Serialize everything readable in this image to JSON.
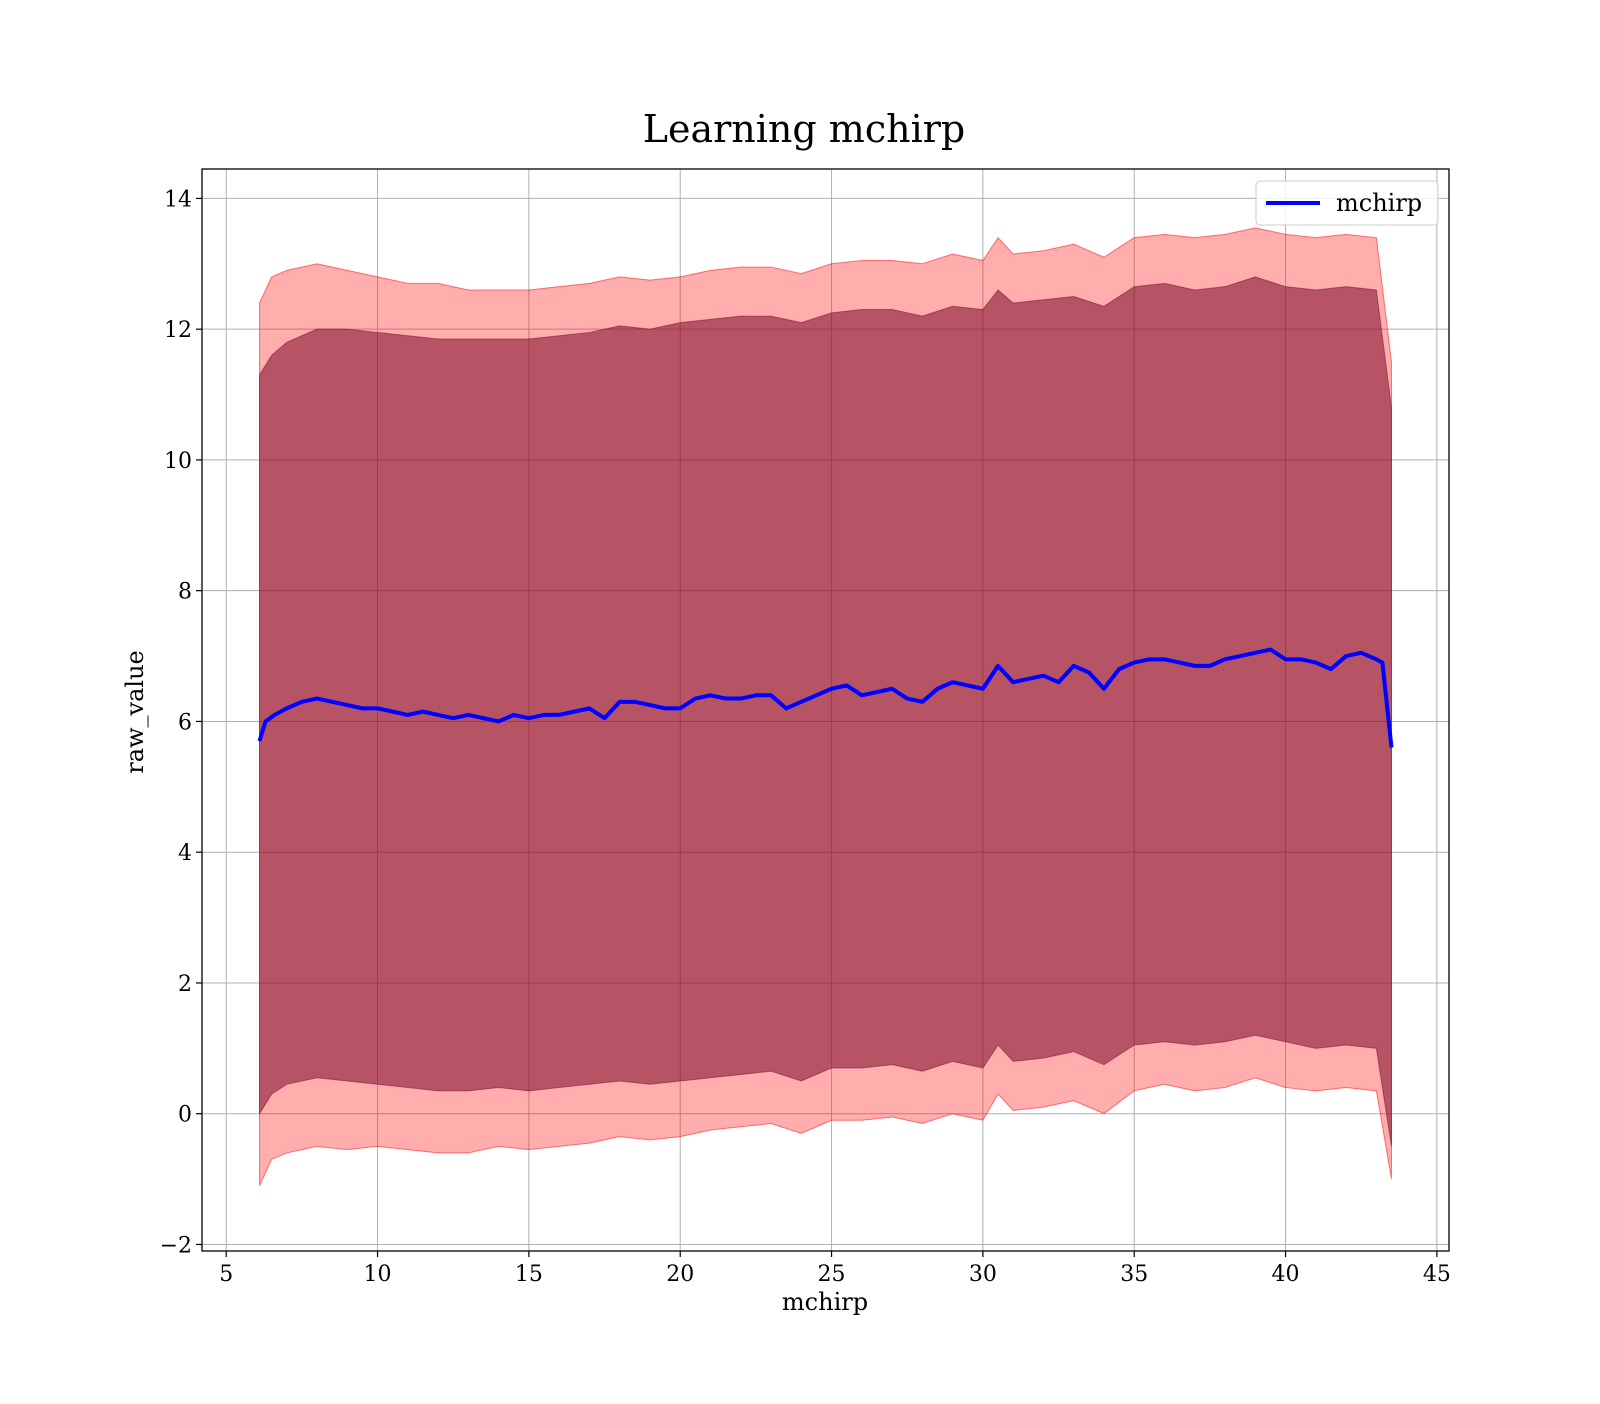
{
  "chart_data": {
    "type": "line",
    "title": "Learning mchirp",
    "xlabel": "mchirp",
    "ylabel": "raw_value",
    "xlim": [
      4.2,
      45.4
    ],
    "ylim": [
      -2.1,
      14.45
    ],
    "xticks": [
      5,
      10,
      15,
      20,
      25,
      30,
      35,
      40,
      45
    ],
    "yticks": [
      -2,
      0,
      2,
      4,
      6,
      8,
      10,
      12,
      14
    ],
    "xtick_labels": [
      "5",
      "10",
      "15",
      "20",
      "25",
      "30",
      "35",
      "40",
      "45"
    ],
    "ytick_labels": [
      "−2",
      "0",
      "2",
      "4",
      "6",
      "8",
      "10",
      "12",
      "14"
    ],
    "grid": true,
    "legend_position": "top-right",
    "legend": [
      {
        "label": "mchirp",
        "color": "#0000ff"
      }
    ],
    "series": [
      {
        "name": "mchirp",
        "color": "#0000ff",
        "x": [
          6.1,
          6.3,
          6.6,
          7,
          7.5,
          8,
          8.5,
          9,
          9.5,
          10,
          10.5,
          11,
          11.5,
          12,
          12.5,
          13,
          13.5,
          14,
          14.5,
          15,
          15.5,
          16,
          16.5,
          17,
          17.5,
          18,
          18.5,
          19,
          19.5,
          20,
          20.5,
          21,
          21.5,
          22,
          22.5,
          23,
          23.5,
          24,
          24.5,
          25,
          25.5,
          26,
          26.5,
          27,
          27.5,
          28,
          28.5,
          29,
          29.5,
          30,
          30.5,
          31,
          31.5,
          32,
          32.5,
          33,
          33.5,
          34,
          34.5,
          35,
          35.5,
          36,
          36.5,
          37,
          37.5,
          38,
          38.5,
          39,
          39.5,
          40,
          40.5,
          41,
          41.5,
          42,
          42.5,
          43,
          43.2,
          43.5
        ],
        "y": [
          5.7,
          6.0,
          6.1,
          6.2,
          6.3,
          6.35,
          6.3,
          6.25,
          6.2,
          6.2,
          6.15,
          6.1,
          6.15,
          6.1,
          6.05,
          6.1,
          6.05,
          6.0,
          6.1,
          6.05,
          6.1,
          6.1,
          6.15,
          6.2,
          6.05,
          6.3,
          6.3,
          6.25,
          6.2,
          6.2,
          6.35,
          6.4,
          6.35,
          6.35,
          6.4,
          6.4,
          6.2,
          6.3,
          6.4,
          6.5,
          6.55,
          6.4,
          6.45,
          6.5,
          6.35,
          6.3,
          6.5,
          6.6,
          6.55,
          6.5,
          6.85,
          6.6,
          6.65,
          6.7,
          6.6,
          6.85,
          6.75,
          6.5,
          6.8,
          6.9,
          6.95,
          6.95,
          6.9,
          6.85,
          6.85,
          6.95,
          7.0,
          7.05,
          7.1,
          6.95,
          6.95,
          6.9,
          6.8,
          7.0,
          7.05,
          6.95,
          6.9,
          5.6
        ]
      }
    ],
    "bands": [
      {
        "color": "#ff0000",
        "opacity": 0.32,
        "x": [
          6.1,
          6.5,
          7,
          8,
          9,
          10,
          11,
          12,
          13,
          14,
          15,
          16,
          17,
          18,
          19,
          20,
          21,
          22,
          23,
          24,
          25,
          26,
          27,
          28,
          29,
          30,
          30.5,
          31,
          32,
          33,
          34,
          35,
          36,
          37,
          38,
          39,
          40,
          41,
          42,
          43,
          43.5
        ],
        "upper": [
          12.4,
          12.8,
          12.9,
          13.0,
          12.9,
          12.8,
          12.7,
          12.7,
          12.6,
          12.6,
          12.6,
          12.65,
          12.7,
          12.8,
          12.75,
          12.8,
          12.9,
          12.95,
          12.95,
          12.85,
          13.0,
          13.05,
          13.05,
          13.0,
          13.15,
          13.05,
          13.4,
          13.15,
          13.2,
          13.3,
          13.1,
          13.4,
          13.45,
          13.4,
          13.45,
          13.55,
          13.45,
          13.4,
          13.45,
          13.4,
          11.5
        ],
        "lower": [
          -1.1,
          -0.7,
          -0.6,
          -0.5,
          -0.55,
          -0.5,
          -0.55,
          -0.6,
          -0.6,
          -0.5,
          -0.55,
          -0.5,
          -0.45,
          -0.35,
          -0.4,
          -0.35,
          -0.25,
          -0.2,
          -0.15,
          -0.3,
          -0.1,
          -0.1,
          -0.05,
          -0.15,
          0.0,
          -0.1,
          0.3,
          0.05,
          0.1,
          0.2,
          0.0,
          0.35,
          0.45,
          0.35,
          0.4,
          0.55,
          0.4,
          0.35,
          0.4,
          0.35,
          -1.0
        ]
      },
      {
        "color": "#7a0a2a",
        "opacity": 0.55,
        "x": [
          6.1,
          6.5,
          7,
          8,
          9,
          10,
          11,
          12,
          13,
          14,
          15,
          16,
          17,
          18,
          19,
          20,
          21,
          22,
          23,
          24,
          25,
          26,
          27,
          28,
          29,
          30,
          30.5,
          31,
          32,
          33,
          34,
          35,
          36,
          37,
          38,
          39,
          40,
          41,
          42,
          43,
          43.5
        ],
        "upper": [
          11.3,
          11.6,
          11.8,
          12.0,
          12.0,
          11.95,
          11.9,
          11.85,
          11.85,
          11.85,
          11.85,
          11.9,
          11.95,
          12.05,
          12.0,
          12.1,
          12.15,
          12.2,
          12.2,
          12.1,
          12.25,
          12.3,
          12.3,
          12.2,
          12.35,
          12.3,
          12.6,
          12.4,
          12.45,
          12.5,
          12.35,
          12.65,
          12.7,
          12.6,
          12.65,
          12.8,
          12.65,
          12.6,
          12.65,
          12.6,
          10.8
        ],
        "lower": [
          0.0,
          0.3,
          0.45,
          0.55,
          0.5,
          0.45,
          0.4,
          0.35,
          0.35,
          0.4,
          0.35,
          0.4,
          0.45,
          0.5,
          0.45,
          0.5,
          0.55,
          0.6,
          0.65,
          0.5,
          0.7,
          0.7,
          0.75,
          0.65,
          0.8,
          0.7,
          1.05,
          0.8,
          0.85,
          0.95,
          0.75,
          1.05,
          1.1,
          1.05,
          1.1,
          1.2,
          1.1,
          1.0,
          1.05,
          1.0,
          -0.5
        ]
      }
    ]
  }
}
